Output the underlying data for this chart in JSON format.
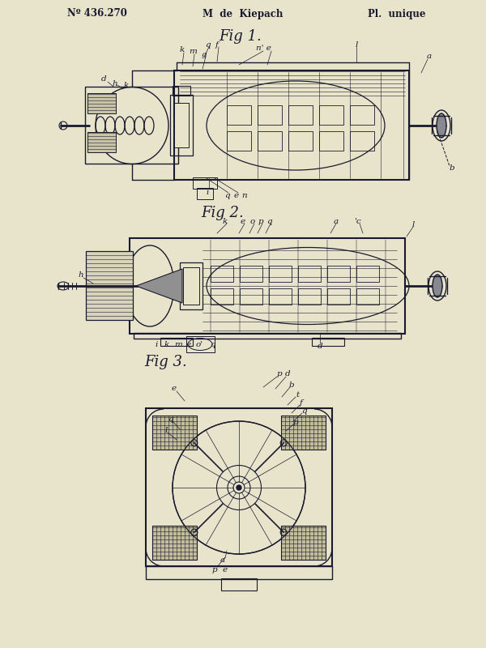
{
  "bg_color": "#E8E4CC",
  "line_color": "#1a1a2e",
  "title_left": "Nº 436.270",
  "title_center": "M  de  Kiepach",
  "title_right": "Pl.  unique",
  "fig1_label": "Fig 1.",
  "fig2_label": "Fig 2.",
  "fig3_label": "Fig 3."
}
